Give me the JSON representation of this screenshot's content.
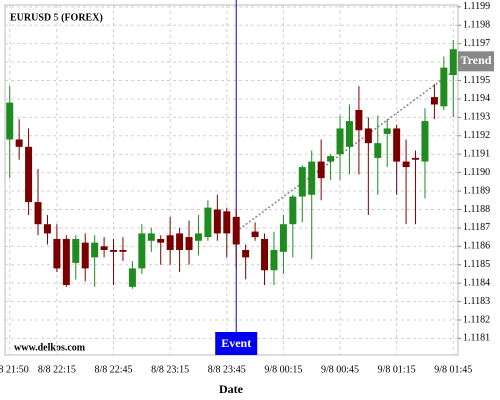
{
  "chart_data": {
    "type": "candlestick",
    "title": "EURUSD 5 (FOREX)",
    "source": "www.delkos.com",
    "x_label": "Date",
    "categories": [
      "8/8 21:50",
      null,
      null,
      null,
      null,
      "8/8 22:15",
      null,
      null,
      null,
      null,
      null,
      "8/8 22:45",
      null,
      null,
      null,
      null,
      null,
      "8/8 23:15",
      null,
      null,
      null,
      null,
      null,
      "8/8 23:45",
      null,
      null,
      null,
      null,
      null,
      "9/8 00:15",
      null,
      null,
      null,
      null,
      null,
      "9/8 00:45",
      null,
      null,
      null,
      null,
      null,
      "9/8 01:15",
      null,
      null,
      null,
      null,
      null,
      "9/8 01:45"
    ],
    "open": [
      1.11918,
      1.11918,
      1.11914,
      1.11884,
      1.11872,
      1.11864,
      1.11864,
      1.11851,
      1.11862,
      1.11854,
      1.1186,
      1.11858,
      1.11858,
      1.11838,
      1.11848,
      1.11863,
      1.11864,
      1.11866,
      1.11867,
      1.11865,
      1.11863,
      1.11865,
      1.1188,
      1.11879,
      1.11876,
      1.11858,
      1.11868,
      1.11864,
      1.11847,
      1.11857,
      1.11872,
      1.11887,
      1.11888,
      1.11906,
      1.11906,
      1.1191,
      1.11914,
      1.11934,
      1.11924,
      1.11908,
      1.11921,
      1.11924,
      1.11906,
      1.11908,
      1.11906,
      1.11941,
      1.11936,
      1.11953
    ],
    "high": [
      1.11947,
      1.11929,
      1.11924,
      1.11902,
      1.11877,
      1.11872,
      1.11866,
      1.11866,
      1.11867,
      1.11866,
      1.11865,
      1.11864,
      1.11865,
      1.11852,
      1.11872,
      1.1187,
      1.11866,
      1.11876,
      1.1187,
      1.11874,
      1.11877,
      1.11885,
      1.11888,
      1.11881,
      1.1188,
      1.11861,
      1.11873,
      1.11867,
      1.11868,
      1.11877,
      1.11888,
      1.11904,
      1.11912,
      1.11918,
      1.1191,
      1.11931,
      1.11937,
      1.11947,
      1.1193,
      1.11931,
      1.11929,
      1.11926,
      1.11918,
      1.11912,
      1.11935,
      1.11948,
      1.11963,
      1.11972
    ],
    "low": [
      1.11897,
      1.11907,
      1.11877,
      1.11866,
      1.11861,
      1.11846,
      1.11838,
      1.11842,
      1.11841,
      1.11838,
      1.11854,
      1.11839,
      1.11852,
      1.11837,
      1.11845,
      1.11857,
      1.1185,
      1.1185,
      1.11846,
      1.1185,
      1.11855,
      1.11863,
      1.11863,
      1.11854,
      1.11848,
      1.11842,
      1.11863,
      1.11839,
      1.11839,
      1.11845,
      1.11854,
      1.11873,
      1.11853,
      1.11885,
      1.11896,
      1.11896,
      1.11899,
      1.11899,
      1.11877,
      1.11888,
      1.11903,
      1.11888,
      1.11872,
      1.11872,
      1.11886,
      1.11929,
      1.11934,
      1.1193
    ],
    "close": [
      1.11938,
      1.11914,
      1.11884,
      1.11872,
      1.11867,
      1.11848,
      1.11839,
      1.11864,
      1.11848,
      1.11862,
      1.11858,
      1.11857,
      1.11857,
      1.11848,
      1.11867,
      1.11867,
      1.11862,
      1.11858,
      1.11858,
      1.11858,
      1.11867,
      1.11881,
      1.11867,
      1.11867,
      1.11861,
      1.11854,
      1.11865,
      1.11847,
      1.11858,
      1.11872,
      1.11887,
      1.11903,
      1.11906,
      1.11897,
      1.11909,
      1.11924,
      1.11928,
      1.11923,
      1.11916,
      1.11916,
      1.11924,
      1.11906,
      1.11903,
      1.11907,
      1.11928,
      1.11937,
      1.11957,
      1.11967
    ],
    "up_color": "#1e8c1e",
    "down_color": "#7a0000",
    "ylim": [
      1.11801,
      1.11991
    ],
    "yticks": [
      1.1181,
      1.1182,
      1.1183,
      1.1184,
      1.1185,
      1.1186,
      1.1187,
      1.1188,
      1.1189,
      {
        "value": 1.119,
        "label": "1.1190"
      },
      1.1191,
      1.1192,
      1.1193,
      1.1194,
      1.1195,
      1.1196,
      1.1197,
      1.1198,
      1.1199
    ],
    "grid": true,
    "event": {
      "label": "Event",
      "candle": 24,
      "color": "#0000ee"
    },
    "trend": {
      "label": "Trend",
      "start": 1.11868,
      "end": 1.11955,
      "color": "#888888"
    }
  }
}
